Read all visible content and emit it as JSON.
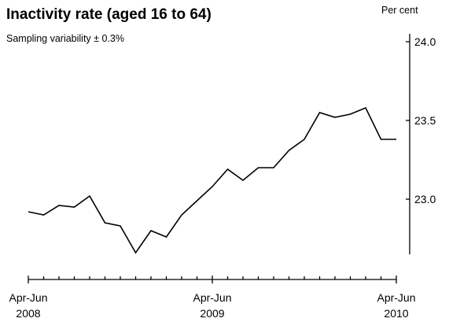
{
  "chart_data": {
    "type": "line",
    "title": "Inactivity rate (aged 16 to 64)",
    "subtitle": "Sampling variability ± 0.3%",
    "unit_label": "Per cent",
    "xlabel": "",
    "ylabel": "",
    "ylim": [
      22.65,
      24.05
    ],
    "y_ticks": [
      23.0,
      23.5,
      24.0
    ],
    "y_tick_labels": [
      "23.0",
      "23.5",
      "24.0"
    ],
    "x_tick_count": 25,
    "x_labels": [
      {
        "index": 0,
        "line1": "Apr-Jun",
        "line2": "2008"
      },
      {
        "index": 12,
        "line1": "Apr-Jun",
        "line2": "2009"
      },
      {
        "index": 24,
        "line1": "Apr-Jun",
        "line2": "2010"
      }
    ],
    "series": [
      {
        "values": [
          22.92,
          22.9,
          22.96,
          22.95,
          23.02,
          22.85,
          22.83,
          22.66,
          22.8,
          22.76,
          22.9,
          22.99,
          23.08,
          23.19,
          23.12,
          23.2,
          23.2,
          23.31,
          23.38,
          23.55,
          23.52,
          23.54,
          23.58,
          23.38,
          23.38
        ]
      }
    ],
    "line_color": "#000000",
    "grid": false,
    "legend": "none"
  }
}
